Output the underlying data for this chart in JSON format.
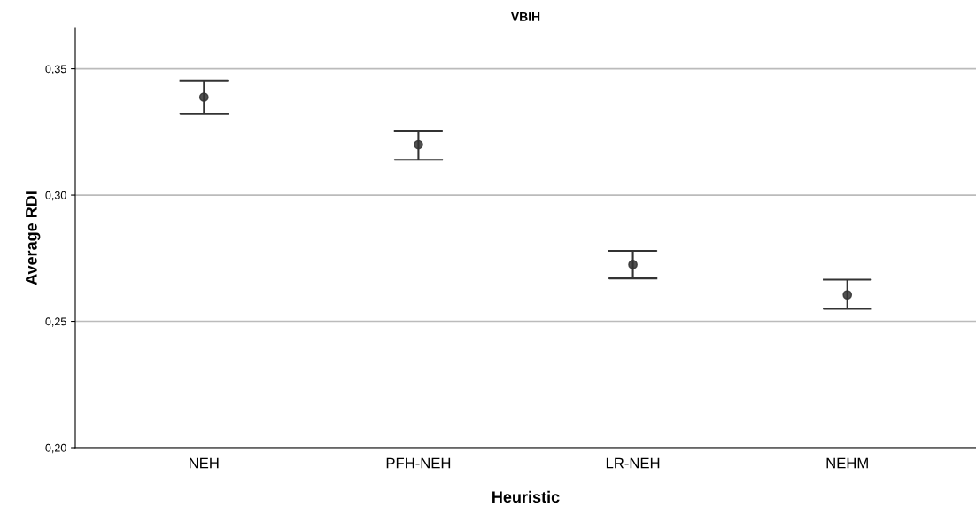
{
  "chart_data": {
    "type": "scatter",
    "title": "VBIH",
    "xlabel": "Heuristic",
    "ylabel": "Average RDI",
    "categories": [
      "NEH",
      "PFH-NEH",
      "LR-NEH",
      "NEHM"
    ],
    "values": [
      0.3388,
      0.32,
      0.2725,
      0.2605
    ],
    "errors": [
      [
        0.3321,
        0.3454
      ],
      [
        0.314,
        0.3253
      ],
      [
        0.267,
        0.2779
      ],
      [
        0.2549,
        0.2665
      ]
    ],
    "color": "#333333",
    "marker": "circle",
    "ylim": [
      0.2,
      0.366
    ],
    "yticks": [
      {
        "value": 0.2,
        "label": "0,20"
      },
      {
        "value": 0.25,
        "label": "0,25"
      },
      {
        "value": 0.3,
        "label": "0,30"
      },
      {
        "value": 0.35,
        "label": "0,35"
      }
    ],
    "grid": "y"
  }
}
